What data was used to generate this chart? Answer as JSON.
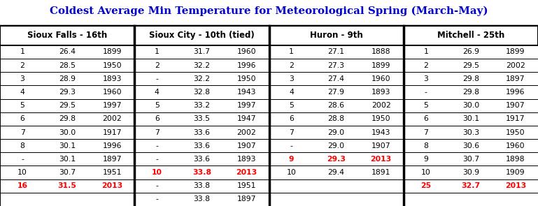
{
  "title": "Coldest Average Min Temperature for Meteorological Spring (March-May)",
  "sections": [
    {
      "header": "Sioux Falls - 16th",
      "rows": [
        [
          "1",
          "26.4",
          "1899"
        ],
        [
          "2",
          "28.5",
          "1950"
        ],
        [
          "3",
          "28.9",
          "1893"
        ],
        [
          "4",
          "29.3",
          "1960"
        ],
        [
          "5",
          "29.5",
          "1997"
        ],
        [
          "6",
          "29.8",
          "2002"
        ],
        [
          "7",
          "30.0",
          "1917"
        ],
        [
          "8",
          "30.1",
          "1996"
        ],
        [
          "-",
          "30.1",
          "1897"
        ],
        [
          "10",
          "30.7",
          "1951"
        ],
        [
          "16",
          "31.5",
          "2013"
        ],
        [
          "",
          "",
          ""
        ]
      ],
      "red_row_idx": 10
    },
    {
      "header": "Sioux City - 10th (tied)",
      "rows": [
        [
          "1",
          "31.7",
          "1960"
        ],
        [
          "2",
          "32.2",
          "1996"
        ],
        [
          "-",
          "32.2",
          "1950"
        ],
        [
          "4",
          "32.8",
          "1943"
        ],
        [
          "5",
          "33.2",
          "1997"
        ],
        [
          "6",
          "33.5",
          "1947"
        ],
        [
          "7",
          "33.6",
          "2002"
        ],
        [
          "-",
          "33.6",
          "1907"
        ],
        [
          "-",
          "33.6",
          "1893"
        ],
        [
          "10",
          "33.8",
          "2013"
        ],
        [
          "-",
          "33.8",
          "1951"
        ],
        [
          "-",
          "33.8",
          "1897"
        ]
      ],
      "red_row_idx": 9
    },
    {
      "header": "Huron - 9th",
      "rows": [
        [
          "1",
          "27.1",
          "1888"
        ],
        [
          "2",
          "27.3",
          "1899"
        ],
        [
          "3",
          "27.4",
          "1960"
        ],
        [
          "4",
          "27.9",
          "1893"
        ],
        [
          "5",
          "28.6",
          "2002"
        ],
        [
          "6",
          "28.8",
          "1950"
        ],
        [
          "7",
          "29.0",
          "1943"
        ],
        [
          "-",
          "29.0",
          "1907"
        ],
        [
          "9",
          "29.3",
          "2013"
        ],
        [
          "10",
          "29.4",
          "1891"
        ],
        [
          "",
          "",
          ""
        ],
        [
          "",
          "",
          ""
        ]
      ],
      "red_row_idx": 8
    },
    {
      "header": "Mitchell - 25th",
      "rows": [
        [
          "1",
          "26.9",
          "1899"
        ],
        [
          "2",
          "29.5",
          "2002"
        ],
        [
          "3",
          "29.8",
          "1897"
        ],
        [
          "-",
          "29.8",
          "1996"
        ],
        [
          "5",
          "30.0",
          "1907"
        ],
        [
          "6",
          "30.1",
          "1917"
        ],
        [
          "7",
          "30.3",
          "1950"
        ],
        [
          "8",
          "30.6",
          "1960"
        ],
        [
          "9",
          "30.7",
          "1898"
        ],
        [
          "10",
          "30.9",
          "1909"
        ],
        [
          "25",
          "32.7",
          "2013"
        ],
        [
          "",
          "",
          ""
        ]
      ],
      "red_row_idx": 10
    }
  ],
  "bg_color": "#ffffff",
  "border_color": "#000000",
  "text_color": "#000000",
  "red_color": "#ff0000",
  "title_color": "#0000cc",
  "n_rows": 12,
  "figsize": [
    7.69,
    2.95
  ]
}
